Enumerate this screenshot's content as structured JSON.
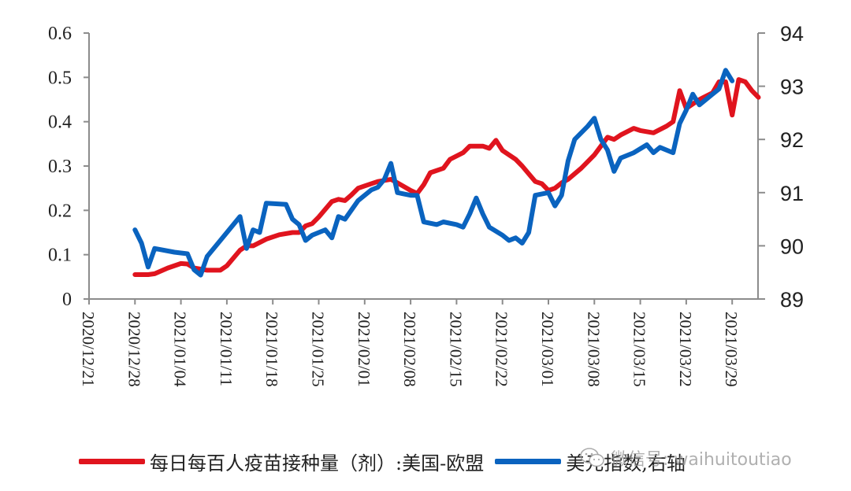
{
  "chart_data": {
    "type": "line",
    "title": "",
    "data_note": "Approximate values estimated from the screenshot: a reduced set of visually sampled points tracing each curve's shape, not the exact daily series.",
    "x_tick_labels": [
      "2020/12/21",
      "2020/12/28",
      "2021/01/04",
      "2021/01/11",
      "2021/01/18",
      "2021/01/25",
      "2021/02/01",
      "2021/02/08",
      "2021/02/15",
      "2021/02/22",
      "2021/03/01",
      "2021/03/08",
      "2021/03/15",
      "2021/03/22",
      "2021/03/29"
    ],
    "x_domain_days": [
      0,
      102
    ],
    "left_axis": {
      "min": 0,
      "max": 0.6,
      "ticks": [
        "0",
        "0.1",
        "0.2",
        "0.3",
        "0.4",
        "0.5",
        "0.6"
      ]
    },
    "right_axis": {
      "min": 89,
      "max": 94,
      "ticks": [
        "89",
        "90",
        "91",
        "92",
        "93",
        "94"
      ]
    },
    "series": [
      {
        "name": "每日每百人疫苗接种量（剂）:美国-欧盟",
        "axis": "left",
        "color": "#e0141e",
        "points_day_value": [
          [
            7,
            0.055
          ],
          [
            9,
            0.055
          ],
          [
            10,
            0.057
          ],
          [
            12,
            0.07
          ],
          [
            14,
            0.08
          ],
          [
            15,
            0.079
          ],
          [
            16,
            0.07
          ],
          [
            18,
            0.065
          ],
          [
            20,
            0.065
          ],
          [
            21,
            0.075
          ],
          [
            23,
            0.11
          ],
          [
            24,
            0.12
          ],
          [
            25,
            0.12
          ],
          [
            27,
            0.135
          ],
          [
            29,
            0.145
          ],
          [
            31,
            0.15
          ],
          [
            32,
            0.15
          ],
          [
            33,
            0.165
          ],
          [
            34,
            0.17
          ],
          [
            35,
            0.185
          ],
          [
            37,
            0.22
          ],
          [
            38,
            0.225
          ],
          [
            39,
            0.222
          ],
          [
            40,
            0.235
          ],
          [
            41,
            0.25
          ],
          [
            42,
            0.255
          ],
          [
            44,
            0.265
          ],
          [
            46,
            0.27
          ],
          [
            47,
            0.262
          ],
          [
            49,
            0.245
          ],
          [
            50,
            0.238
          ],
          [
            51,
            0.258
          ],
          [
            52,
            0.285
          ],
          [
            54,
            0.295
          ],
          [
            55,
            0.315
          ],
          [
            57,
            0.33
          ],
          [
            58,
            0.345
          ],
          [
            60,
            0.345
          ],
          [
            61,
            0.34
          ],
          [
            62,
            0.358
          ],
          [
            63,
            0.335
          ],
          [
            65,
            0.315
          ],
          [
            66,
            0.3
          ],
          [
            68,
            0.265
          ],
          [
            69,
            0.26
          ],
          [
            70,
            0.245
          ],
          [
            71,
            0.25
          ],
          [
            72,
            0.262
          ],
          [
            73,
            0.27
          ],
          [
            75,
            0.295
          ],
          [
            77,
            0.325
          ],
          [
            78,
            0.345
          ],
          [
            79,
            0.365
          ],
          [
            80,
            0.36
          ],
          [
            81,
            0.37
          ],
          [
            83,
            0.385
          ],
          [
            84,
            0.38
          ],
          [
            86,
            0.375
          ],
          [
            88,
            0.39
          ],
          [
            89,
            0.4
          ],
          [
            90,
            0.47
          ],
          [
            91,
            0.43
          ],
          [
            93,
            0.45
          ],
          [
            95,
            0.465
          ],
          [
            96,
            0.49
          ],
          [
            97,
            0.49
          ],
          [
            98,
            0.415
          ],
          [
            99,
            0.495
          ],
          [
            100,
            0.49
          ],
          [
            101,
            0.47
          ],
          [
            102,
            0.455
          ]
        ],
        "points_day_value_tail": [
          [
            100,
            0.49
          ],
          [
            101,
            0.47
          ],
          [
            102,
            0.455
          ]
        ]
      },
      {
        "name": "美元指数,右轴",
        "axis": "right",
        "color": "#0a63bf",
        "points_day_value": [
          [
            7,
            90.3
          ],
          [
            8,
            90.05
          ],
          [
            9,
            89.6
          ],
          [
            10,
            89.95
          ],
          [
            13,
            89.88
          ],
          [
            15,
            89.85
          ],
          [
            16,
            89.55
          ],
          [
            17,
            89.45
          ],
          [
            18,
            89.8
          ],
          [
            20,
            90.1
          ],
          [
            23,
            90.55
          ],
          [
            24,
            89.95
          ],
          [
            25,
            90.3
          ],
          [
            26,
            90.25
          ],
          [
            27,
            90.8
          ],
          [
            30,
            90.78
          ],
          [
            31,
            90.5
          ],
          [
            32,
            90.4
          ],
          [
            33,
            90.1
          ],
          [
            34,
            90.2
          ],
          [
            36,
            90.3
          ],
          [
            37,
            90.15
          ],
          [
            38,
            90.55
          ],
          [
            39,
            90.5
          ],
          [
            41,
            90.85
          ],
          [
            43,
            91.05
          ],
          [
            44,
            91.1
          ],
          [
            45,
            91.25
          ],
          [
            46,
            91.55
          ],
          [
            47,
            91.0
          ],
          [
            49,
            90.95
          ],
          [
            50,
            90.95
          ],
          [
            51,
            90.45
          ],
          [
            53,
            90.4
          ],
          [
            54,
            90.45
          ],
          [
            56,
            90.4
          ],
          [
            57,
            90.35
          ],
          [
            58,
            90.6
          ],
          [
            59,
            90.9
          ],
          [
            60,
            90.6
          ],
          [
            61,
            90.35
          ],
          [
            63,
            90.2
          ],
          [
            64,
            90.1
          ],
          [
            65,
            90.15
          ],
          [
            66,
            90.05
          ],
          [
            67,
            90.25
          ],
          [
            68,
            90.95
          ],
          [
            70,
            91.0
          ],
          [
            71,
            90.75
          ],
          [
            72,
            90.95
          ],
          [
            73,
            91.6
          ],
          [
            74,
            92.0
          ],
          [
            76,
            92.25
          ],
          [
            77,
            92.4
          ],
          [
            78,
            92.0
          ],
          [
            79,
            91.8
          ],
          [
            80,
            91.4
          ],
          [
            81,
            91.65
          ],
          [
            83,
            91.75
          ],
          [
            85,
            91.9
          ],
          [
            86,
            91.75
          ],
          [
            87,
            91.85
          ],
          [
            89,
            91.75
          ],
          [
            90,
            92.3
          ],
          [
            91,
            92.55
          ],
          [
            92,
            92.85
          ],
          [
            93,
            92.65
          ],
          [
            95,
            92.85
          ],
          [
            96,
            92.95
          ],
          [
            97,
            93.3
          ],
          [
            98,
            93.1
          ]
        ]
      }
    ],
    "legend_position": "bottom",
    "grid": false
  },
  "legend": {
    "items": [
      {
        "label": "每日每百人疫苗接种量（剂）:美国-欧盟",
        "color": "#e0141e"
      },
      {
        "label": "美元指数,右轴",
        "color": "#0a63bf"
      }
    ]
  },
  "watermark": {
    "text": "微信号: waihuitoutiao"
  }
}
